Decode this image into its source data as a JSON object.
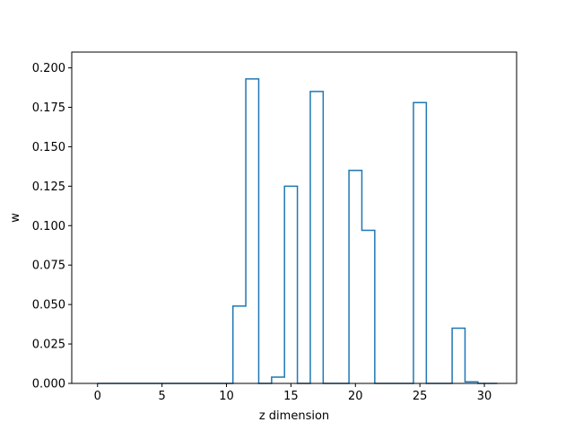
{
  "chart_data": {
    "type": "line",
    "drawstyle": "steps-mid",
    "xlabel": "z dimension",
    "ylabel": "w",
    "xlim": [
      -2,
      32.5
    ],
    "ylim": [
      0,
      0.21
    ],
    "xticks": [
      0,
      5,
      10,
      15,
      20,
      25,
      30
    ],
    "xtick_labels": [
      "0",
      "5",
      "10",
      "15",
      "20",
      "25",
      "30"
    ],
    "yticks": [
      0.0,
      0.025,
      0.05,
      0.075,
      0.1,
      0.125,
      0.15,
      0.175,
      0.2
    ],
    "ytick_labels": [
      "0.000",
      "0.025",
      "0.050",
      "0.075",
      "0.100",
      "0.125",
      "0.150",
      "0.175",
      "0.200"
    ],
    "grid": false,
    "color": "#1f77b4",
    "series": [
      {
        "x": [
          0,
          1,
          2,
          3,
          4,
          5,
          6,
          7,
          8,
          9,
          10,
          11,
          12,
          13,
          14,
          15,
          16,
          17,
          18,
          19,
          20,
          21,
          22,
          23,
          24,
          25,
          26,
          27,
          28,
          29,
          30,
          31
        ],
        "values": [
          0,
          0,
          0,
          0,
          0,
          0,
          0,
          0,
          0,
          0,
          0,
          0.049,
          0.193,
          0,
          0.004,
          0.125,
          0,
          0.185,
          0,
          0,
          0.135,
          0.097,
          0,
          0,
          0,
          0.178,
          0,
          0,
          0.035,
          0.001,
          0,
          0
        ]
      }
    ]
  }
}
